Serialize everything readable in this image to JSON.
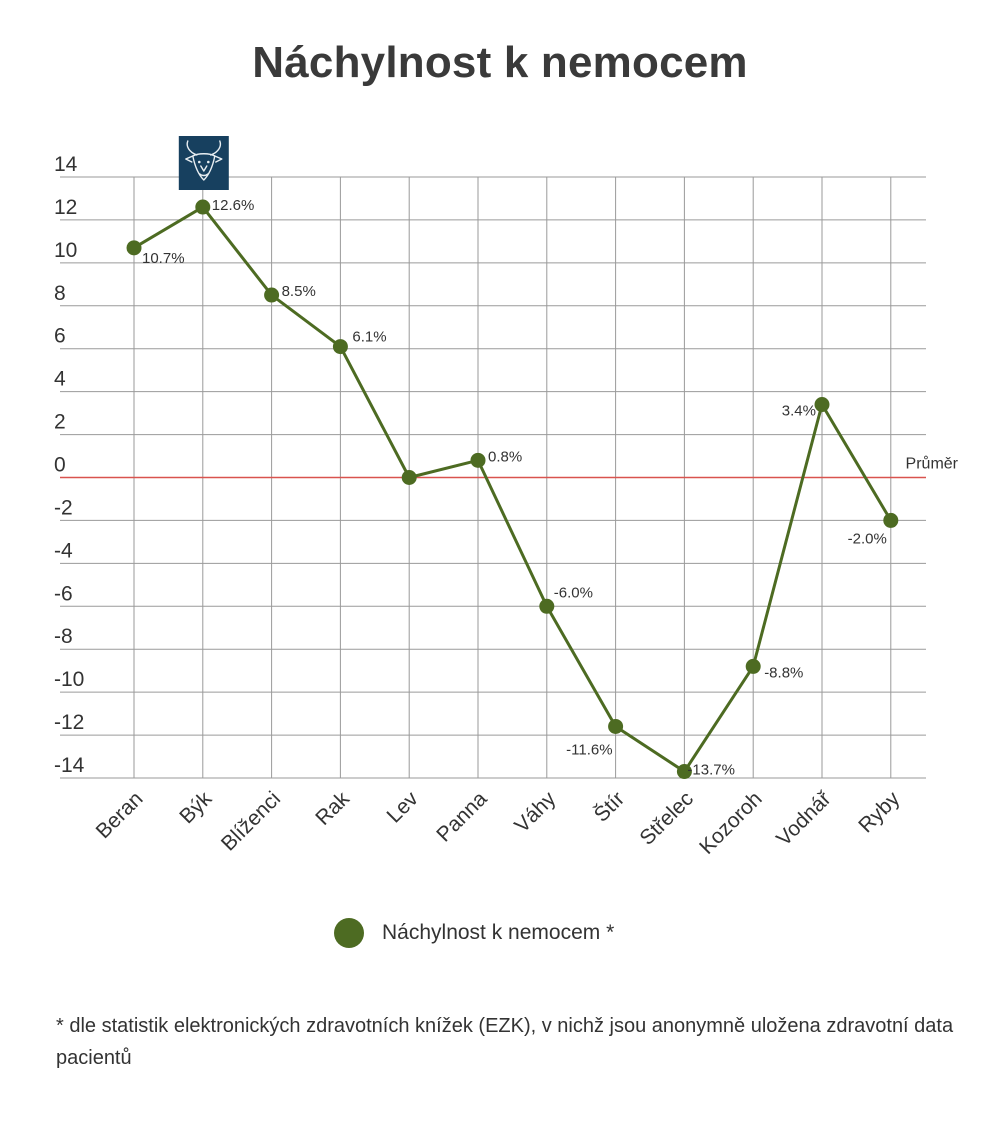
{
  "colors": {
    "series": "#4d6b22",
    "average_line": "#d9534f",
    "grid": "#9a9a9a",
    "badge_bg": "#17405f"
  },
  "chart_data": {
    "type": "line",
    "title": "Náchylnost k nemocem",
    "xlabel": "",
    "ylabel": "",
    "ylim": [
      -14,
      14
    ],
    "y_ticks": [
      "14",
      "12",
      "10",
      "8",
      "6",
      "4",
      "2",
      "0",
      "-2",
      "-4",
      "-6",
      "-8",
      "-10",
      "-12",
      "-14"
    ],
    "grid": true,
    "legend_position": "bottom",
    "categories": [
      "Beran",
      "Býk",
      "Blíženci",
      "Rak",
      "Lev",
      "Panna",
      "Váhy",
      "Štír",
      "Střelec",
      "Kozoroh",
      "Vodnář",
      "Ryby"
    ],
    "series": [
      {
        "name": "Náchylnost k nemocem *",
        "values": [
          10.7,
          12.6,
          8.5,
          6.1,
          0,
          0.8,
          -6.0,
          -11.6,
          -13.7,
          -8.8,
          3.4,
          -2.0
        ],
        "labels": [
          "10.7%",
          "12.6%",
          "8.5%",
          "6.1%",
          "",
          "0.8%",
          "-6.0%",
          "-11.6%",
          "-13.7%",
          "-8.8%",
          "3.4%",
          "-2.0%"
        ]
      }
    ],
    "reference_line": {
      "value": 0,
      "label": "Průměr"
    },
    "highlight": {
      "category": "Býk",
      "icon": "bull-icon"
    }
  },
  "footnote": "* dle statistik elektronických zdravotních knížek (EZK), v nichž jsou anonymně uložena zdravotní data pacientů"
}
